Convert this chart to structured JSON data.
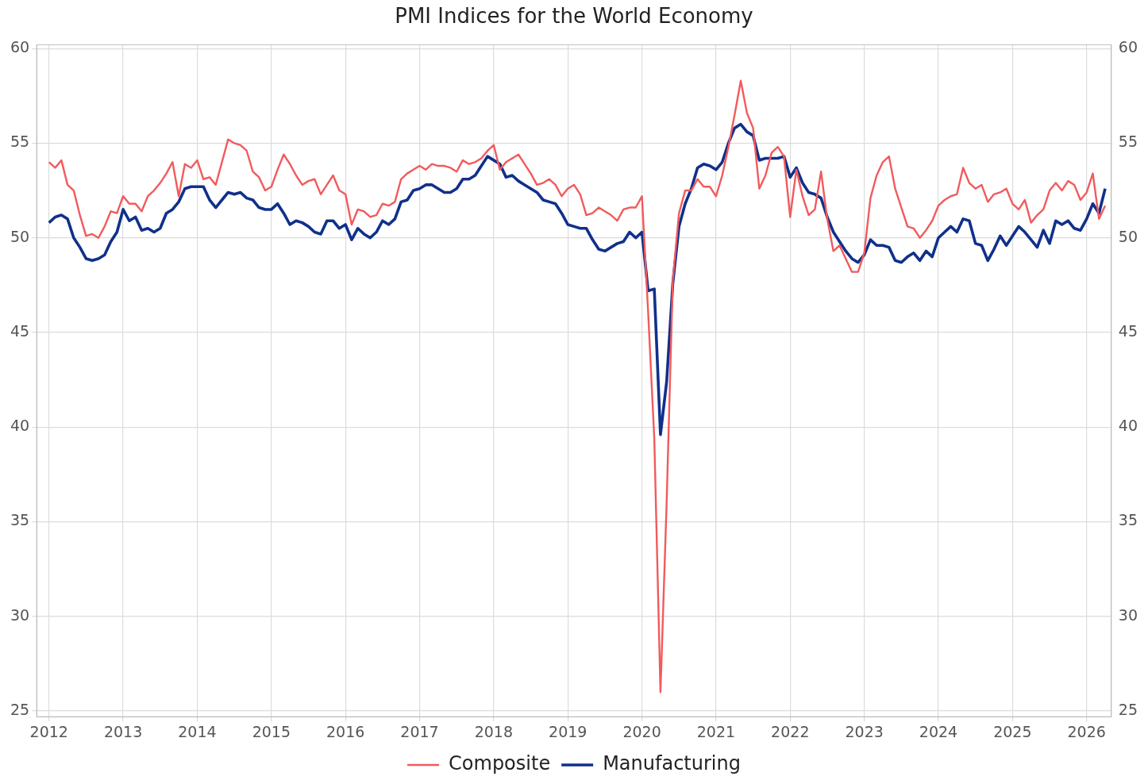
{
  "chart_data": {
    "type": "line",
    "title": "PMI Indices for the World Economy",
    "x": [
      "2012-01",
      "2012-02",
      "2012-03",
      "2012-04",
      "2012-05",
      "2012-06",
      "2012-07",
      "2012-08",
      "2012-09",
      "2012-10",
      "2012-11",
      "2012-12",
      "2013-01",
      "2013-02",
      "2013-03",
      "2013-04",
      "2013-05",
      "2013-06",
      "2013-07",
      "2013-08",
      "2013-09",
      "2013-10",
      "2013-11",
      "2013-12",
      "2014-01",
      "2014-02",
      "2014-03",
      "2014-04",
      "2014-05",
      "2014-06",
      "2014-07",
      "2014-08",
      "2014-09",
      "2014-10",
      "2014-11",
      "2014-12",
      "2015-01",
      "2015-02",
      "2015-03",
      "2015-04",
      "2015-05",
      "2015-06",
      "2015-07",
      "2015-08",
      "2015-09",
      "2015-10",
      "2015-11",
      "2015-12",
      "2016-01",
      "2016-02",
      "2016-03",
      "2016-04",
      "2016-05",
      "2016-06",
      "2016-07",
      "2016-08",
      "2016-09",
      "2016-10",
      "2016-11",
      "2016-12",
      "2017-01",
      "2017-02",
      "2017-03",
      "2017-04",
      "2017-05",
      "2017-06",
      "2017-07",
      "2017-08",
      "2017-09",
      "2017-10",
      "2017-11",
      "2017-12",
      "2018-01",
      "2018-02",
      "2018-03",
      "2018-04",
      "2018-05",
      "2018-06",
      "2018-07",
      "2018-08",
      "2018-09",
      "2018-10",
      "2018-11",
      "2018-12",
      "2019-01",
      "2019-02",
      "2019-03",
      "2019-04",
      "2019-05",
      "2019-06",
      "2019-07",
      "2019-08",
      "2019-09",
      "2019-10",
      "2019-11",
      "2019-12",
      "2020-01",
      "2020-02",
      "2020-03",
      "2020-04",
      "2020-05",
      "2020-06",
      "2020-07",
      "2020-08",
      "2020-09",
      "2020-10",
      "2020-11",
      "2020-12",
      "2021-01",
      "2021-02",
      "2021-03",
      "2021-04",
      "2021-05",
      "2021-06",
      "2021-07",
      "2021-08",
      "2021-09",
      "2021-10",
      "2021-11",
      "2021-12",
      "2022-01",
      "2022-02",
      "2022-03",
      "2022-04",
      "2022-05",
      "2022-06",
      "2022-07",
      "2022-08",
      "2022-09",
      "2022-10",
      "2022-11",
      "2022-12",
      "2023-01",
      "2023-02",
      "2023-03",
      "2023-04",
      "2023-05",
      "2023-06",
      "2023-07",
      "2023-08",
      "2023-09",
      "2023-10",
      "2023-11",
      "2023-12",
      "2024-01",
      "2024-02",
      "2024-03",
      "2024-04",
      "2024-05",
      "2024-06",
      "2024-07",
      "2024-08",
      "2024-09",
      "2024-10",
      "2024-11",
      "2024-12",
      "2025-01",
      "2025-02",
      "2025-03",
      "2025-04",
      "2025-05",
      "2025-06",
      "2025-07",
      "2025-08",
      "2025-09",
      "2025-10",
      "2025-11",
      "2025-12",
      "2026-01",
      "2026-02",
      "2026-03",
      "2026-04"
    ],
    "series": [
      {
        "name": "Composite",
        "color": "#f25a5c",
        "values": [
          54.0,
          53.7,
          54.1,
          52.8,
          52.5,
          51.2,
          50.1,
          50.2,
          50.0,
          50.6,
          51.4,
          51.3,
          52.2,
          51.8,
          51.8,
          51.4,
          52.2,
          52.5,
          52.9,
          53.4,
          54.0,
          52.2,
          53.9,
          53.7,
          54.1,
          53.1,
          53.2,
          52.8,
          54.0,
          55.2,
          55.0,
          54.9,
          54.6,
          53.5,
          53.2,
          52.5,
          52.7,
          53.6,
          54.4,
          53.9,
          53.3,
          52.8,
          53.0,
          53.1,
          52.3,
          52.8,
          53.3,
          52.5,
          52.3,
          50.7,
          51.5,
          51.4,
          51.1,
          51.2,
          51.8,
          51.7,
          51.9,
          53.1,
          53.4,
          53.6,
          53.8,
          53.6,
          53.9,
          53.8,
          53.8,
          53.7,
          53.5,
          54.1,
          53.9,
          54.0,
          54.2,
          54.6,
          54.9,
          53.6,
          54.0,
          54.2,
          54.4,
          53.9,
          53.4,
          52.8,
          52.9,
          53.1,
          52.8,
          52.2,
          52.6,
          52.8,
          52.3,
          51.2,
          51.3,
          51.6,
          51.4,
          51.2,
          50.9,
          51.5,
          51.6,
          51.6,
          52.2,
          46.1,
          39.4,
          26.0,
          36.0,
          47.8,
          51.3,
          52.5,
          52.5,
          53.1,
          52.7,
          52.7,
          52.2,
          53.3,
          54.8,
          56.5,
          58.3,
          56.6,
          55.8,
          52.6,
          53.3,
          54.5,
          54.8,
          54.3,
          51.1,
          53.6,
          52.2,
          51.2,
          51.5,
          53.5,
          51.0,
          49.3,
          49.6,
          48.9,
          48.2,
          48.2,
          49.2,
          52.1,
          53.3,
          54.0,
          54.3,
          52.6,
          51.6,
          50.6,
          50.5,
          50.0,
          50.4,
          50.9,
          51.7,
          52.0,
          52.2,
          52.3,
          53.7,
          52.9,
          52.6,
          52.8,
          51.9,
          52.3,
          52.4,
          52.6,
          51.8,
          51.5,
          52.0,
          50.8,
          51.2,
          51.5,
          52.5,
          52.9,
          52.5,
          53.0,
          52.8,
          52.0,
          52.4,
          53.4,
          51.0,
          51.7
        ]
      },
      {
        "name": "Manufacturing",
        "color": "#10308a",
        "values": [
          50.8,
          51.1,
          51.2,
          51.0,
          50.0,
          49.5,
          48.9,
          48.8,
          48.9,
          49.1,
          49.8,
          50.3,
          51.5,
          50.9,
          51.1,
          50.4,
          50.5,
          50.3,
          50.5,
          51.3,
          51.5,
          51.9,
          52.6,
          52.7,
          52.7,
          52.7,
          52.0,
          51.6,
          52.0,
          52.4,
          52.3,
          52.4,
          52.1,
          52.0,
          51.6,
          51.5,
          51.5,
          51.8,
          51.3,
          50.7,
          50.9,
          50.8,
          50.6,
          50.3,
          50.2,
          50.9,
          50.9,
          50.5,
          50.7,
          49.9,
          50.5,
          50.2,
          50.0,
          50.3,
          50.9,
          50.7,
          51.0,
          51.9,
          52.0,
          52.5,
          52.6,
          52.8,
          52.8,
          52.6,
          52.4,
          52.4,
          52.6,
          53.1,
          53.1,
          53.3,
          53.8,
          54.3,
          54.1,
          53.9,
          53.2,
          53.3,
          53.0,
          52.8,
          52.6,
          52.4,
          52.0,
          51.9,
          51.8,
          51.3,
          50.7,
          50.6,
          50.5,
          50.5,
          49.9,
          49.4,
          49.3,
          49.5,
          49.7,
          49.8,
          50.3,
          50.0,
          50.3,
          47.2,
          47.3,
          39.6,
          42.4,
          47.6,
          50.6,
          51.8,
          52.6,
          53.7,
          53.9,
          53.8,
          53.6,
          54.0,
          55.0,
          55.8,
          56.0,
          55.6,
          55.4,
          54.1,
          54.2,
          54.2,
          54.2,
          54.3,
          53.2,
          53.7,
          52.9,
          52.4,
          52.3,
          52.1,
          51.1,
          50.3,
          49.8,
          49.3,
          48.9,
          48.7,
          49.1,
          49.9,
          49.6,
          49.6,
          49.5,
          48.8,
          48.7,
          49.0,
          49.2,
          48.8,
          49.3,
          49.0,
          50.0,
          50.3,
          50.6,
          50.3,
          51.0,
          50.9,
          49.7,
          49.6,
          48.8,
          49.4,
          50.1,
          49.6,
          50.1,
          50.6,
          50.3,
          49.9,
          49.5,
          50.4,
          49.7,
          50.9,
          50.7,
          50.9,
          50.5,
          50.4,
          51.0,
          51.8,
          51.3,
          52.6
        ]
      }
    ],
    "xlim": [
      "2011-11",
      "2026-05"
    ],
    "xticks": [
      "2012",
      "2013",
      "2014",
      "2015",
      "2016",
      "2017",
      "2018",
      "2019",
      "2020",
      "2021",
      "2022",
      "2023",
      "2024",
      "2025",
      "2026"
    ],
    "ylim": [
      24.7,
      60.2
    ],
    "yticks": [
      25,
      30,
      35,
      40,
      45,
      50,
      55,
      60
    ],
    "y2lim": [
      24.7,
      60.2
    ],
    "y2ticks": [
      25,
      30,
      35,
      40,
      45,
      50,
      55,
      60
    ],
    "grid": true,
    "legend": "bottom",
    "line_style": "solid"
  }
}
